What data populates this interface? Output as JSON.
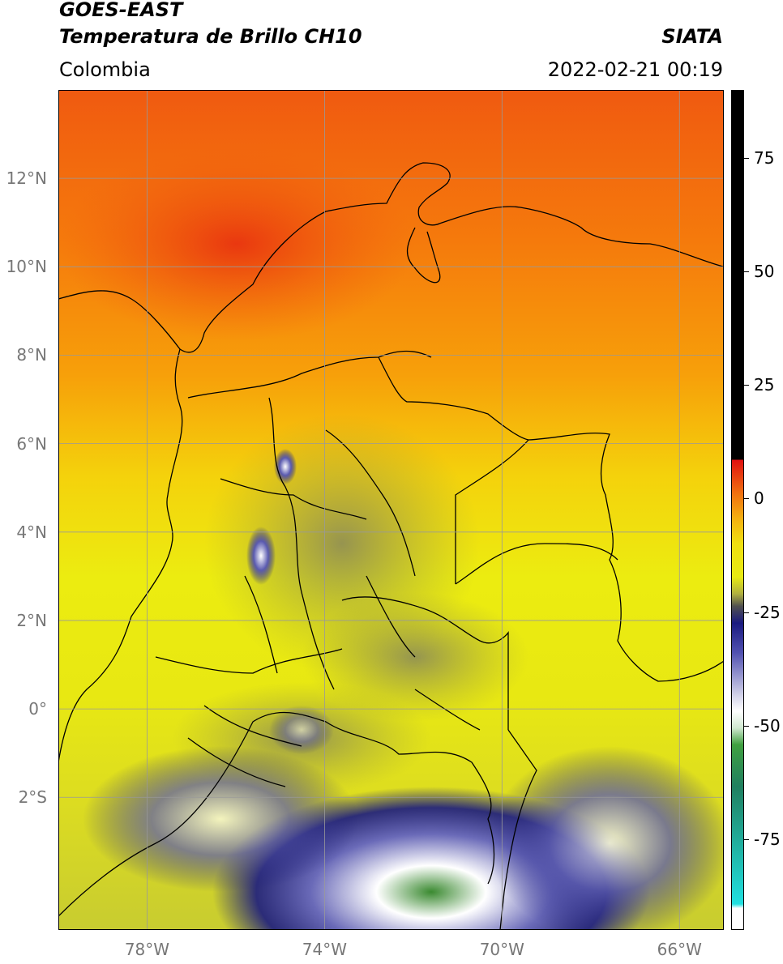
{
  "header": {
    "satellite": "GOES-EAST",
    "product": "Temperatura de Brillo CH10",
    "region": "Colombia",
    "source": "SIATA",
    "datetime": "2022-02-21 00:19"
  },
  "map": {
    "lat_labels": [
      "12°N",
      "10°N",
      "8°N",
      "6°N",
      "4°N",
      "2°N",
      "0°",
      "2°S"
    ],
    "lon_labels": [
      "78°W",
      "74°W",
      "70°W",
      "66°W"
    ],
    "lat_values": [
      12,
      10,
      8,
      6,
      4,
      2,
      0,
      -2
    ],
    "lon_values": [
      -78,
      -74,
      -70,
      -66
    ],
    "extent": {
      "lon_min": -80.0,
      "lon_max": -65.0,
      "lat_min": -5.0,
      "lat_max": 14.0
    }
  },
  "colorbar": {
    "tick_labels": [
      "75",
      "50",
      "25",
      "0",
      "-25",
      "-50",
      "-75"
    ],
    "tick_values": [
      75,
      50,
      25,
      0,
      -25,
      -50,
      -75
    ],
    "range": [
      -95,
      90
    ],
    "colors": {
      "warm": "#000000",
      "hot": "#e01010",
      "mid": "#f0e010",
      "cold": "#1a1a80",
      "very_cold": "#40a040",
      "extreme": "#20e0e0"
    }
  }
}
